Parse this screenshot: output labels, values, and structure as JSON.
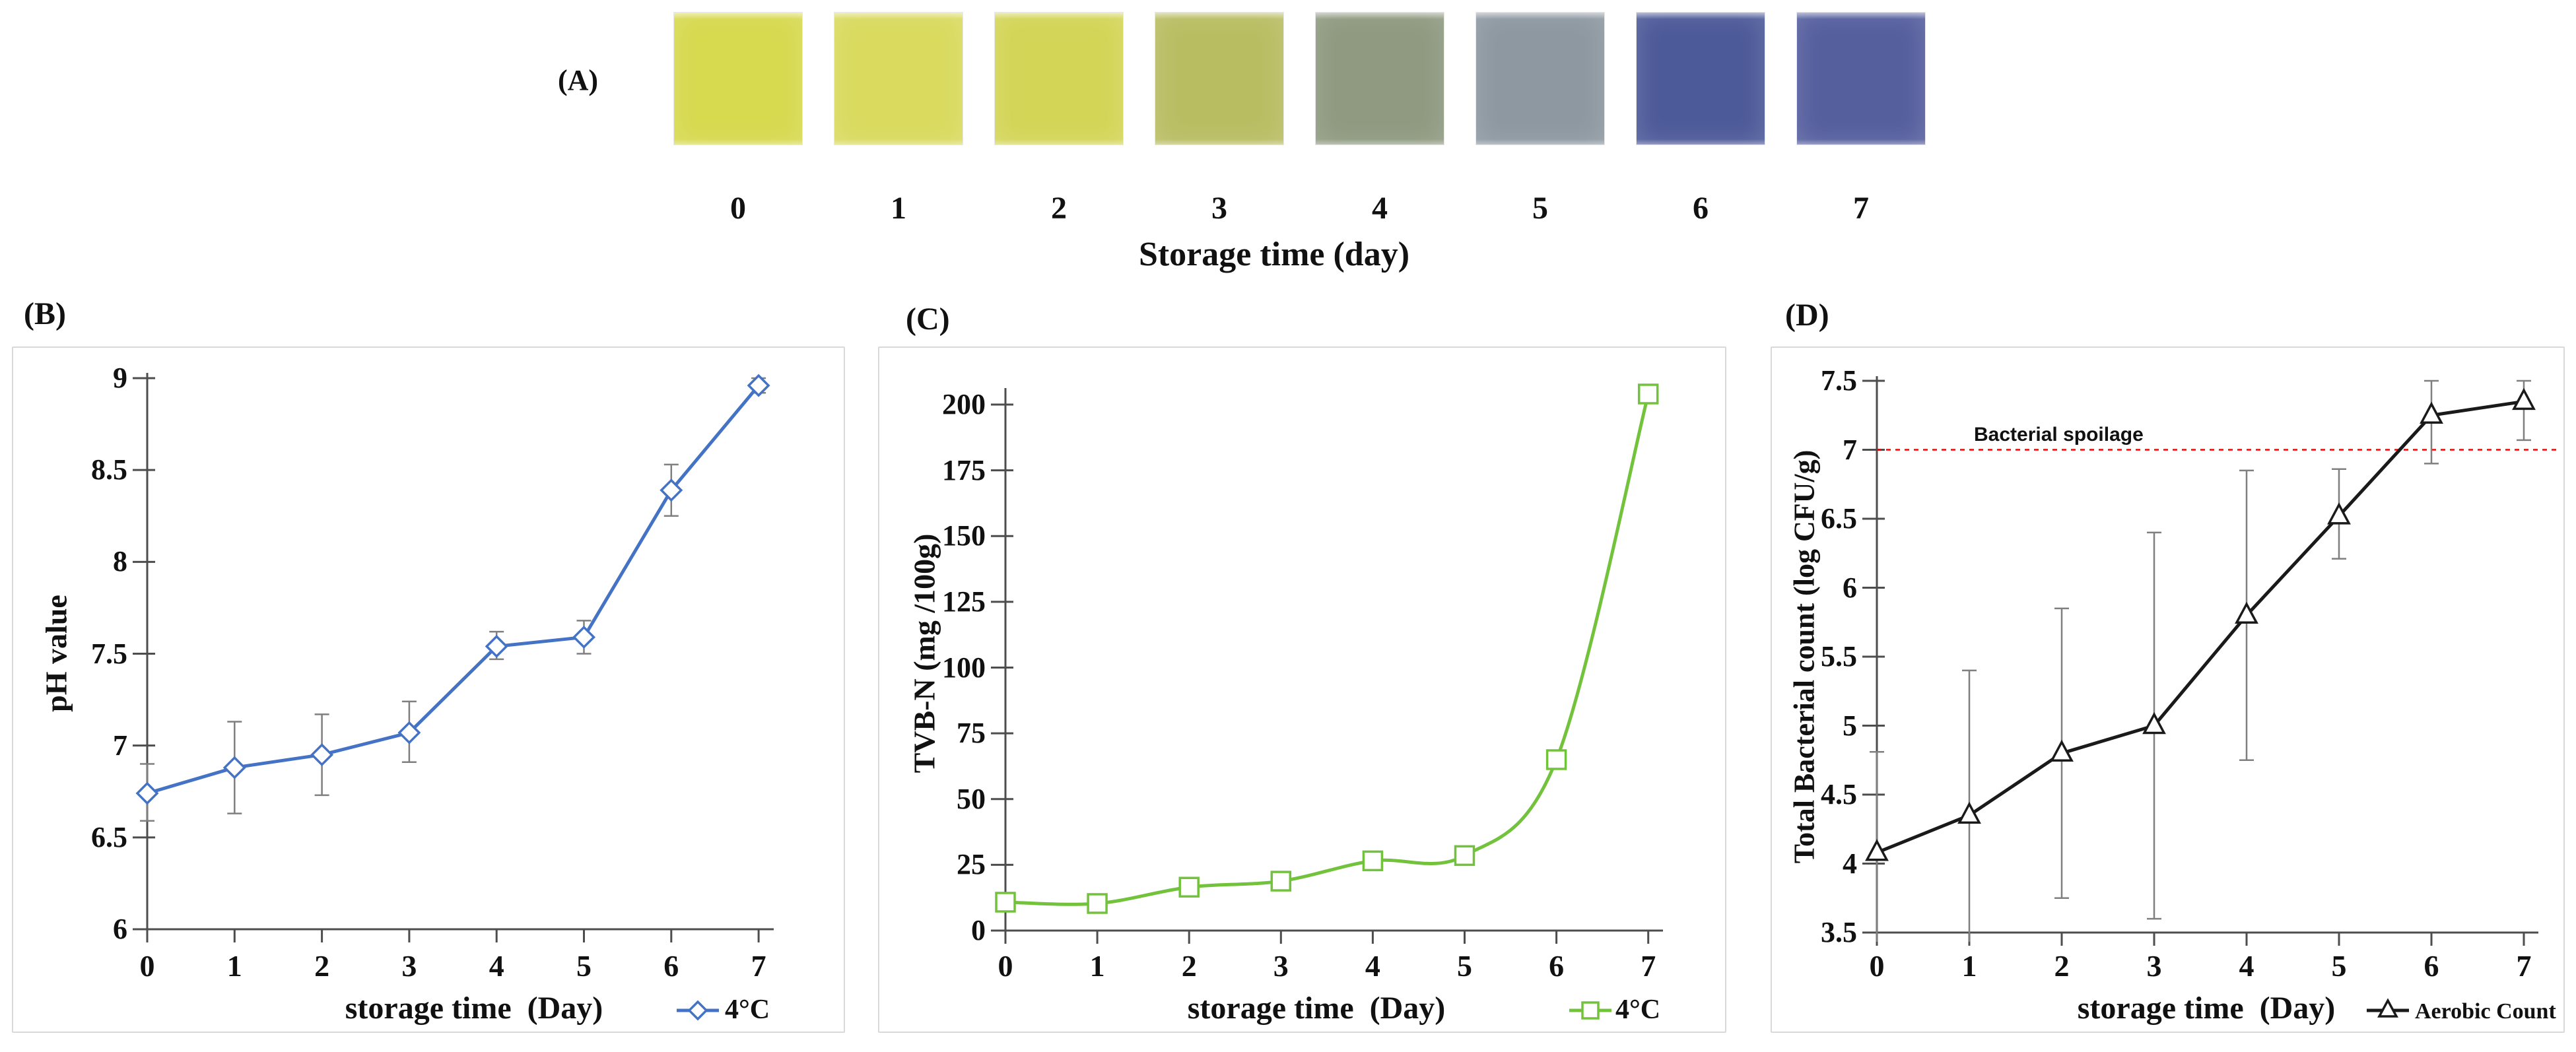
{
  "figure": {
    "panelA": {
      "label": "(A)",
      "axis_title": "Storage time (day)",
      "swatches": [
        {
          "day": "0",
          "color": "#d7d94f"
        },
        {
          "day": "1",
          "color": "#d9da5e"
        },
        {
          "day": "2",
          "color": "#d3d557"
        },
        {
          "day": "3",
          "color": "#b9bd62"
        },
        {
          "day": "4",
          "color": "#8f9a81"
        },
        {
          "day": "5",
          "color": "#8d98a1"
        },
        {
          "day": "6",
          "color": "#4d5a99"
        },
        {
          "day": "7",
          "color": "#555f9e"
        }
      ]
    },
    "style": {
      "axis_color": "#4d4d4d",
      "error_bar_color": "#7f7f7f",
      "background": "#ffffff"
    }
  },
  "chart_data": [
    {
      "id": "B",
      "panel_label": "(B)",
      "type": "line",
      "x": [
        0,
        1,
        2,
        3,
        4,
        5,
        6,
        7
      ],
      "xticks": [
        "0",
        "1",
        "2",
        "3",
        "4",
        "5",
        "6",
        "7"
      ],
      "xlabel": "storage time  (Day)",
      "ylabel": "pH value",
      "ylim": [
        6,
        9
      ],
      "ytick_step": 0.5,
      "yticks": [
        "6",
        "6.5",
        "7",
        "7.5",
        "8",
        "8.5",
        "9"
      ],
      "grid": false,
      "legend_position": "bottom-right",
      "series": [
        {
          "name": "4°C",
          "color": "#4472C4",
          "marker": "diamond",
          "line_style": "straight",
          "values": [
            6.74,
            6.88,
            6.95,
            7.07,
            7.54,
            7.59,
            8.39,
            8.96
          ],
          "err_up": [
            6.9,
            7.13,
            7.17,
            7.24,
            7.62,
            7.68,
            8.53,
            9.0
          ],
          "err_lo": [
            6.59,
            6.63,
            6.73,
            6.91,
            7.47,
            7.5,
            8.25,
            8.92
          ]
        }
      ]
    },
    {
      "id": "C",
      "panel_label": "(C)",
      "type": "line",
      "x": [
        0,
        1,
        2,
        3,
        4,
        5,
        6,
        7
      ],
      "xticks": [
        "0",
        "1",
        "2",
        "3",
        "4",
        "5",
        "6",
        "7"
      ],
      "xlabel": "storage time  (Day)",
      "ylabel": "TVB-N (mg /100g)",
      "ylim": [
        0,
        200
      ],
      "ytick_step": 25,
      "yticks": [
        "0",
        "25",
        "50",
        "75",
        "100",
        "125",
        "150",
        "175",
        "200"
      ],
      "grid": false,
      "legend_position": "bottom-right",
      "series": [
        {
          "name": "4°C",
          "color": "#72C23C",
          "marker": "square",
          "line_style": "smooth",
          "values": [
            10.8,
            10.3,
            16.5,
            18.8,
            26.5,
            28.5,
            65,
            204
          ],
          "err_up": [
            12.5,
            12.0,
            19.0,
            21.5,
            28.0,
            31.5,
            68,
            206
          ],
          "err_lo": [
            9.0,
            8.5,
            14.0,
            16.0,
            25.0,
            25.5,
            62,
            202
          ]
        }
      ]
    },
    {
      "id": "D",
      "panel_label": "(D)",
      "type": "line",
      "x": [
        0,
        1,
        2,
        3,
        4,
        5,
        6,
        7
      ],
      "xticks": [
        "0",
        "1",
        "2",
        "3",
        "4",
        "5",
        "6",
        "7"
      ],
      "xlabel": "storage time  (Day)",
      "ylabel": "Total Bacterial count (log CFU/g)",
      "ylim": [
        3.5,
        7.5
      ],
      "ytick_step": 0.5,
      "yticks": [
        "3.5",
        "4",
        "4.5",
        "5",
        "5.5",
        "6",
        "6.5",
        "7",
        "7.5"
      ],
      "grid": false,
      "legend_position": "bottom-right",
      "annotation": {
        "text": "Bacterial spoilage",
        "color": "#FF0000",
        "y": 7.0,
        "line_style": "dashed"
      },
      "series": [
        {
          "name": "Aerobic Count",
          "color": "#1a1a1a",
          "marker": "triangle",
          "line_style": "straight",
          "values": [
            4.08,
            4.35,
            4.8,
            5.0,
            5.8,
            6.52,
            7.25,
            7.35
          ],
          "err_up": [
            4.81,
            5.4,
            5.85,
            6.4,
            6.85,
            6.86,
            7.5,
            7.5
          ],
          "err_lo": [
            3.35,
            3.3,
            3.75,
            3.6,
            4.75,
            6.21,
            6.9,
            7.07
          ]
        }
      ]
    }
  ]
}
